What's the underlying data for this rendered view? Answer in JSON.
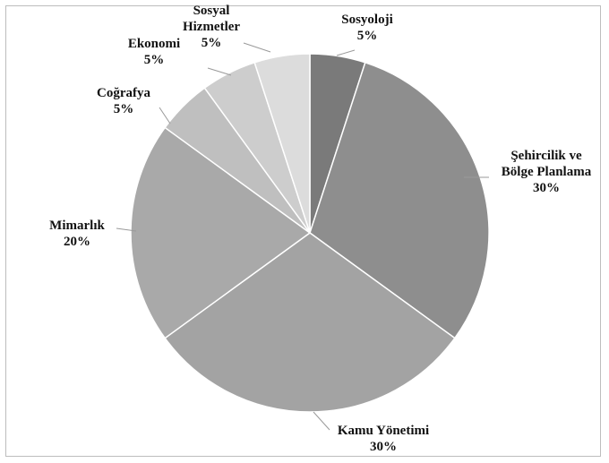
{
  "chart_data": {
    "type": "pie",
    "title": "",
    "categories": [
      "Sosyoloji",
      "Şehircilik ve Bölge Planlama",
      "Kamu Yönetimi",
      "Mimarlık",
      "Coğrafya",
      "Ekonomi",
      "Sosyal Hizmetler"
    ],
    "values": [
      5,
      30,
      30,
      20,
      5,
      5,
      5
    ],
    "value_labels": [
      "5%",
      "30%",
      "30%",
      "20%",
      "5%",
      "5%",
      "5%"
    ],
    "label_lines": [
      [
        "Sosyoloji",
        "5%"
      ],
      [
        "Şehircilik ve",
        "Bölge Planlama",
        "30%"
      ],
      [
        "Kamu Yönetimi",
        "30%"
      ],
      [
        "Mimarlık",
        "20%"
      ],
      [
        "Coğrafya",
        "5%"
      ],
      [
        "Ekonomi",
        "5%"
      ],
      [
        "Sosyal",
        "Hizmetler",
        "5%"
      ]
    ],
    "colors": [
      "#7a7a7a",
      "#8e8e8e",
      "#a3a3a3",
      "#a9a9a9",
      "#bfbfbf",
      "#cdcdcd",
      "#dcdcdc"
    ],
    "start_angle": "12 o'clock",
    "direction": "clockwise",
    "legend": "none"
  }
}
